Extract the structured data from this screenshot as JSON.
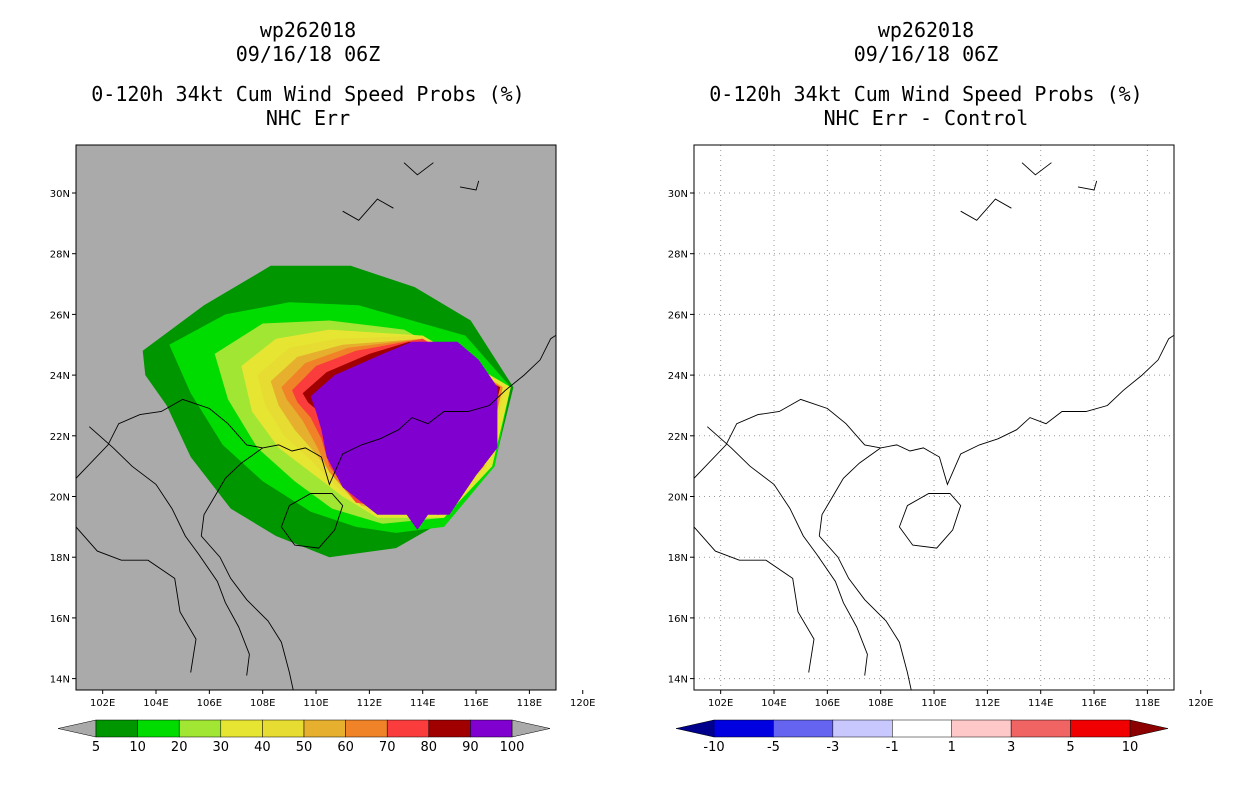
{
  "panels": [
    {
      "id": "left",
      "storm": "wp262018",
      "date": "09/16/18 06Z",
      "product": "0-120h 34kt Cum Wind Speed Probs (%)",
      "subtitle": "NHC Err",
      "background": "#aaaaaa",
      "colorbar": {
        "colors": [
          "#009600",
          "#00dc00",
          "#a0e632",
          "#e6e632",
          "#e6dc32",
          "#e6af2d",
          "#f08228",
          "#fa3c3c",
          "#a00000",
          "#8000d0"
        ],
        "labels": [
          "5",
          "10",
          "20",
          "30",
          "40",
          "50",
          "60",
          "70",
          "80",
          "90",
          "100"
        ],
        "under_color": "#aaaaaa",
        "over_color": "#aaaaaa"
      }
    },
    {
      "id": "right",
      "storm": "wp262018",
      "date": "09/16/18 06Z",
      "product": "0-120h 34kt Cum Wind Speed Probs (%)",
      "subtitle": "NHC Err - Control",
      "background": "#ffffff",
      "colorbar": {
        "colors": [
          "#0000e0",
          "#6464f0",
          "#c8c8ff",
          "#ffffff",
          "#ffc8c8",
          "#f06464",
          "#f00000"
        ],
        "labels": [
          "-10",
          "-5",
          "-3",
          "-1",
          "1",
          "3",
          "5",
          "10"
        ],
        "under_color": "#00008c",
        "over_color": "#8c0000"
      }
    }
  ],
  "axes": {
    "lon_labels": [
      "102E",
      "104E",
      "106E",
      "108E",
      "110E",
      "112E",
      "114E",
      "116E",
      "118E",
      "120E"
    ],
    "lat_labels": [
      "30N",
      "28N",
      "26N",
      "24N",
      "22N",
      "20N",
      "18N",
      "16N",
      "14N"
    ]
  }
}
